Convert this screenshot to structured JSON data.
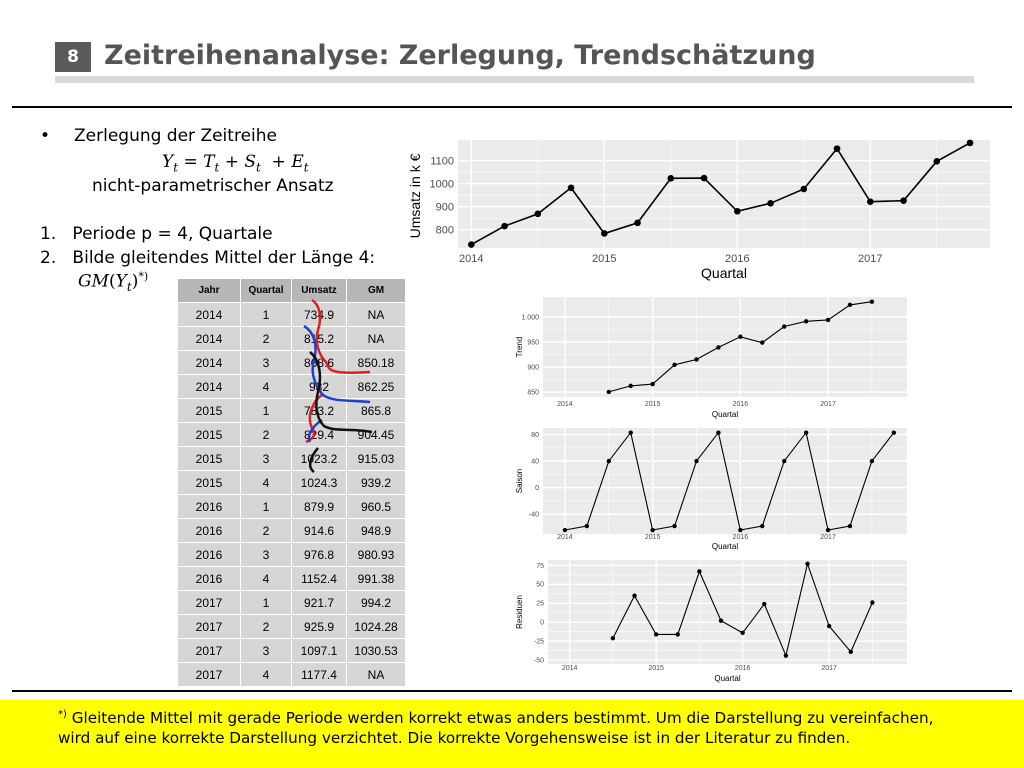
{
  "slide": {
    "number": "8",
    "title": "Zeitreihenanalyse: Zerlegung, Trendschätzung"
  },
  "content": {
    "bullet": "Zerlegung der Zeitreihe",
    "formula": {
      "Y": "Y",
      "t": "t",
      "eq": " = ",
      "T": "T",
      "plus1": " + ",
      "S": "S",
      "plus2": "  + ",
      "E": "E"
    },
    "approach": "nicht-parametrischer Ansatz",
    "step1": "1.   Periode p = 4, Quartale",
    "step2": "2.   Bilde gleitendes Mittel der Länge 4:",
    "gm_formula": {
      "GM": "GM",
      "open": "(",
      "Y": "Y",
      "t": "t",
      "close": ")",
      "star": "*)"
    }
  },
  "table": {
    "headers": [
      "Jahr",
      "Quartal",
      "Umsatz",
      "GM"
    ],
    "rows": [
      [
        "2014",
        "1",
        "734.9",
        "NA"
      ],
      [
        "2014",
        "2",
        "815.2",
        "NA"
      ],
      [
        "2014",
        "3",
        "868.6",
        "850.18"
      ],
      [
        "2014",
        "4",
        "982",
        "862.25"
      ],
      [
        "2015",
        "1",
        "783.2",
        "865.8"
      ],
      [
        "2015",
        "2",
        "829.4",
        "904.45"
      ],
      [
        "2015",
        "3",
        "1023.2",
        "915.03"
      ],
      [
        "2015",
        "4",
        "1024.3",
        "939.2"
      ],
      [
        "2016",
        "1",
        "879.9",
        "960.5"
      ],
      [
        "2016",
        "2",
        "914.6",
        "948.9"
      ],
      [
        "2016",
        "3",
        "976.8",
        "980.93"
      ],
      [
        "2016",
        "4",
        "1152.4",
        "991.38"
      ],
      [
        "2017",
        "1",
        "921.7",
        "994.2"
      ],
      [
        "2017",
        "2",
        "925.9",
        "1024.28"
      ],
      [
        "2017",
        "3",
        "1097.1",
        "1030.53"
      ],
      [
        "2017",
        "4",
        "1177.4",
        "NA"
      ]
    ]
  },
  "footnote": {
    "marker": "*)",
    "text": " Gleitende Mittel mit gerade Periode werden korrekt etwas anders bestimmt. Um die Darstellung zu vereinfachen, wird auf eine korrekte Darstellung verzichtet. Die korrekte Vorgehensweise ist in der Literatur zu finden."
  },
  "colors": {
    "panel": "#ebebeb",
    "grid": "#ffffff",
    "line": "#000000",
    "table_header": "#b7b7b7",
    "table_cell": "#d6d6d6",
    "footnote_bg": "#ffff00",
    "annotation_red": "#e0201e",
    "annotation_blue": "#1f3fd1"
  },
  "chart_data": [
    {
      "type": "line",
      "xlabel": "Quartal",
      "ylabel": "Umsatz in k €",
      "x_ticks": [
        "2014",
        "2015",
        "2016",
        "2017"
      ],
      "y_ticks": [
        "800",
        "900",
        "1000",
        "1100"
      ],
      "ylim": [
        720,
        1190
      ],
      "x": [
        2014.0,
        2014.25,
        2014.5,
        2014.75,
        2015.0,
        2015.25,
        2015.5,
        2015.75,
        2016.0,
        2016.25,
        2016.5,
        2016.75,
        2017.0,
        2017.25,
        2017.5,
        2017.75
      ],
      "values": [
        734.9,
        815.2,
        868.6,
        982,
        783.2,
        829.4,
        1023.2,
        1024.3,
        879.9,
        914.6,
        976.8,
        1152.4,
        921.7,
        925.9,
        1097.1,
        1177.4
      ]
    },
    {
      "type": "line",
      "xlabel": "Quartal",
      "ylabel": "Trend",
      "x_ticks": [
        "2014",
        "2015",
        "2016",
        "2017"
      ],
      "y_ticks": [
        "850",
        "900",
        "950",
        "1.000"
      ],
      "ylim": [
        840,
        1040
      ],
      "x": [
        2014.5,
        2014.75,
        2015.0,
        2015.25,
        2015.5,
        2015.75,
        2016.0,
        2016.25,
        2016.5,
        2016.75,
        2017.0,
        2017.25,
        2017.5
      ],
      "values": [
        850.18,
        862.25,
        865.8,
        904.45,
        915.03,
        939.2,
        960.5,
        948.9,
        980.93,
        991.38,
        994.2,
        1024.28,
        1030.53
      ]
    },
    {
      "type": "line",
      "xlabel": "Quartal",
      "ylabel": "Saison",
      "x_ticks": [
        "2014",
        "2015",
        "2016",
        "2017"
      ],
      "y_ticks": [
        "-40",
        "0",
        "40",
        "80"
      ],
      "ylim": [
        -70,
        90
      ],
      "x": [
        2014.0,
        2014.25,
        2014.5,
        2014.75,
        2015.0,
        2015.25,
        2015.5,
        2015.75,
        2016.0,
        2016.25,
        2016.5,
        2016.75,
        2017.0,
        2017.25,
        2017.5,
        2017.75
      ],
      "values": [
        -64,
        -58,
        40,
        83,
        -64,
        -58,
        40,
        83,
        -64,
        -58,
        40,
        83,
        -64,
        -58,
        40,
        83
      ]
    },
    {
      "type": "line",
      "xlabel": "Quartal",
      "ylabel": "Residuen",
      "x_ticks": [
        "2014",
        "2015",
        "2016",
        "2017"
      ],
      "y_ticks": [
        "-50",
        "-25",
        "0",
        "25",
        "50",
        "75"
      ],
      "ylim": [
        -55,
        82
      ],
      "x": [
        2014.5,
        2014.75,
        2015.0,
        2015.25,
        2015.5,
        2015.75,
        2016.0,
        2016.25,
        2016.5,
        2016.75,
        2017.0,
        2017.25,
        2017.5
      ],
      "values": [
        -21,
        35,
        -16,
        -16,
        67,
        2,
        -14,
        24,
        -44,
        77,
        -5,
        -39,
        26
      ]
    }
  ]
}
